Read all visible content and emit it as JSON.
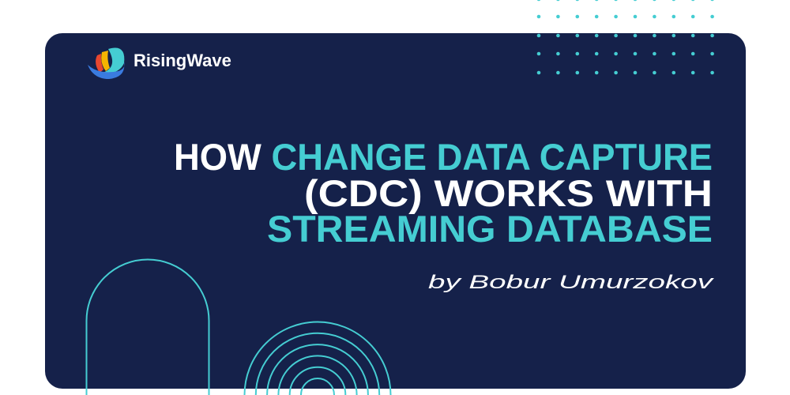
{
  "brand": {
    "name": "RisingWave",
    "logo_icon": "risingwave-wave-logo"
  },
  "title": {
    "line1_white": "HOW ",
    "line1_accent": "CHANGE DATA CAPTURE",
    "line2": "(CDC) WORKS WITH",
    "line3": "STREAMING DATABASE"
  },
  "byline": "by Bobur Umurzokov",
  "colors": {
    "background": "#ffffff",
    "card": "#15214a",
    "accent": "#45cdd2",
    "text": "#ffffff",
    "logo_red": "#e8472f",
    "logo_yellow": "#f5b400",
    "logo_teal": "#45cdd2",
    "logo_blue": "#3a7be0"
  }
}
